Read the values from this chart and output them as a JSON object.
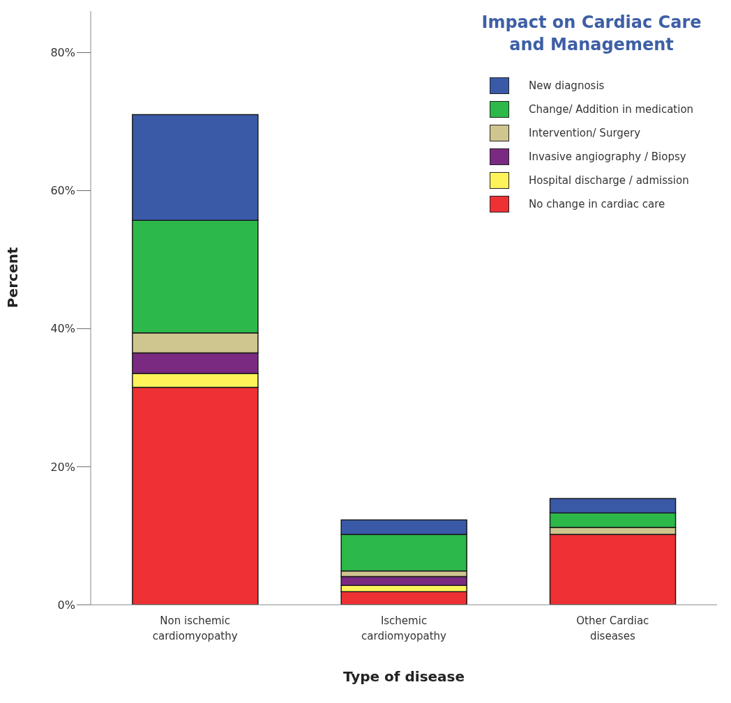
{
  "chart_data": {
    "type": "bar",
    "stacked": true,
    "title": "Impact on Cardiac Care and Management",
    "xlabel": "Type of disease",
    "ylabel": "Percent",
    "categories": [
      "Non ischemic cardiomyopathy",
      "Ischemic cardiomyopathy",
      "Other Cardiac diseases"
    ],
    "series": [
      {
        "name": "No change in cardiac care",
        "color": "#ee3135",
        "values": [
          31.5,
          1.9,
          10.2
        ]
      },
      {
        "name": "Hospital discharge / admission",
        "color": "#fff35a",
        "values": [
          2,
          0.9,
          0
        ]
      },
      {
        "name": "Invasive angiography / Biopsy",
        "color": "#7b2a82",
        "values": [
          3,
          1.3,
          0
        ]
      },
      {
        "name": "Intervention/ Surgery",
        "color": "#cfc58e",
        "values": [
          2.9,
          0.8,
          1
        ]
      },
      {
        "name": "Change/ Addition in medication",
        "color": "#2db84a",
        "values": [
          16.3,
          5.3,
          2.1
        ]
      },
      {
        "name": "New diagnosis",
        "color": "#3a5aa8",
        "values": [
          15.3,
          2.1,
          2.1
        ]
      }
    ],
    "ylim": [
      0,
      86
    ],
    "yticks": [
      {
        "value": 0,
        "label": "0%"
      },
      {
        "value": 20,
        "label": "20%"
      },
      {
        "value": 40,
        "label": "40%"
      },
      {
        "value": 60,
        "label": "60%"
      },
      {
        "value": 80,
        "label": "80%"
      }
    ],
    "grid": false,
    "legend": "top right"
  }
}
